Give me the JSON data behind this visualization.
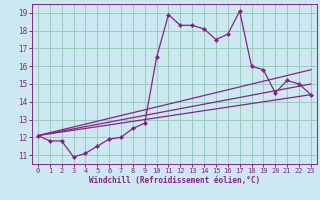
{
  "xlabel": "Windchill (Refroidissement éolien,°C)",
  "bg_color": "#cce8f0",
  "line_color": "#882288",
  "grid_color": "#99ccbb",
  "x_ticks": [
    0,
    1,
    2,
    3,
    4,
    5,
    6,
    7,
    8,
    9,
    10,
    11,
    12,
    13,
    14,
    15,
    16,
    17,
    18,
    19,
    20,
    21,
    22,
    23
  ],
  "y_ticks": [
    11,
    12,
    13,
    14,
    15,
    16,
    17,
    18,
    19
  ],
  "xlim": [
    -0.5,
    23.5
  ],
  "ylim": [
    10.5,
    19.5
  ],
  "series1_x": [
    0,
    1,
    2,
    3,
    4,
    5,
    6,
    7,
    8,
    9,
    10,
    11,
    12,
    13,
    14,
    15,
    16,
    17,
    18,
    19,
    20,
    21,
    22,
    23
  ],
  "series1_y": [
    12.1,
    11.8,
    11.8,
    10.9,
    11.1,
    11.5,
    11.9,
    12.0,
    12.5,
    12.8,
    16.5,
    18.9,
    18.3,
    18.3,
    18.1,
    17.5,
    17.8,
    19.1,
    16.0,
    15.8,
    14.5,
    15.2,
    15.0,
    14.4
  ],
  "series2_x": [
    0,
    23
  ],
  "series2_y": [
    12.1,
    14.4
  ],
  "series3_x": [
    0,
    23
  ],
  "series3_y": [
    12.1,
    15.0
  ],
  "series4_x": [
    0,
    23
  ],
  "series4_y": [
    12.1,
    15.8
  ]
}
